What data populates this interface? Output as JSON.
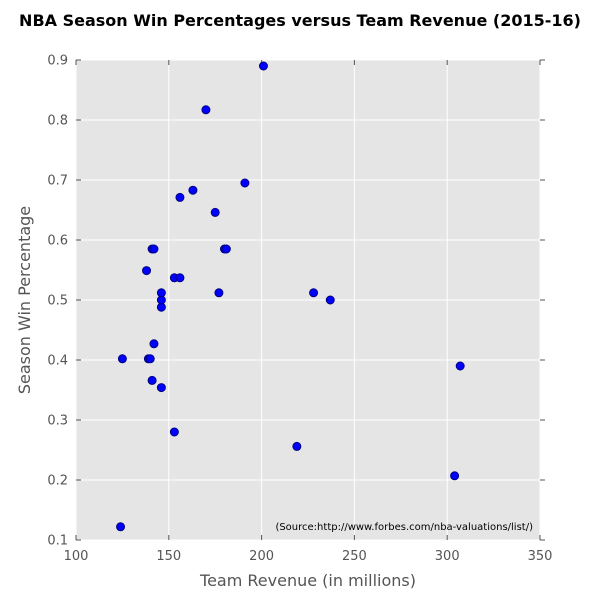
{
  "chart_data": {
    "type": "scatter",
    "title": "NBA Season Win Percentages versus Team Revenue (2015-16)",
    "xlabel": "Team Revenue (in millions)",
    "ylabel": "Season Win Percentage",
    "xlim": [
      100,
      350
    ],
    "ylim": [
      0.1,
      0.9
    ],
    "xticks": [
      "100",
      "150",
      "200",
      "250",
      "300",
      "350"
    ],
    "yticks": [
      "0.1",
      "0.2",
      "0.3",
      "0.4",
      "0.5",
      "0.6",
      "0.7",
      "0.8",
      "0.9"
    ],
    "grid": true,
    "annotation": "(Source:http://www.forbes.com/nba-valuations/list/)",
    "colors": {
      "plot_background": "#e5e5e5",
      "grid": "#ffffff",
      "marker_fill": "#0000ff",
      "marker_edge": "#000080"
    },
    "series": [
      {
        "points": [
          {
            "x": 124,
            "y": 0.122
          },
          {
            "x": 125,
            "y": 0.402
          },
          {
            "x": 138,
            "y": 0.549
          },
          {
            "x": 139,
            "y": 0.402
          },
          {
            "x": 140,
            "y": 0.402
          },
          {
            "x": 141,
            "y": 0.366
          },
          {
            "x": 141,
            "y": 0.585
          },
          {
            "x": 142,
            "y": 0.585
          },
          {
            "x": 142,
            "y": 0.427
          },
          {
            "x": 146,
            "y": 0.354
          },
          {
            "x": 146,
            "y": 0.488
          },
          {
            "x": 146,
            "y": 0.5
          },
          {
            "x": 146,
            "y": 0.512
          },
          {
            "x": 153,
            "y": 0.28
          },
          {
            "x": 153,
            "y": 0.537
          },
          {
            "x": 156,
            "y": 0.537
          },
          {
            "x": 156,
            "y": 0.671
          },
          {
            "x": 163,
            "y": 0.683
          },
          {
            "x": 170,
            "y": 0.817
          },
          {
            "x": 175,
            "y": 0.646
          },
          {
            "x": 177,
            "y": 0.512
          },
          {
            "x": 180,
            "y": 0.585
          },
          {
            "x": 181,
            "y": 0.585
          },
          {
            "x": 191,
            "y": 0.695
          },
          {
            "x": 201,
            "y": 0.89
          },
          {
            "x": 219,
            "y": 0.256
          },
          {
            "x": 228,
            "y": 0.512
          },
          {
            "x": 237,
            "y": 0.5
          },
          {
            "x": 304,
            "y": 0.207
          },
          {
            "x": 307,
            "y": 0.39
          }
        ]
      }
    ]
  }
}
